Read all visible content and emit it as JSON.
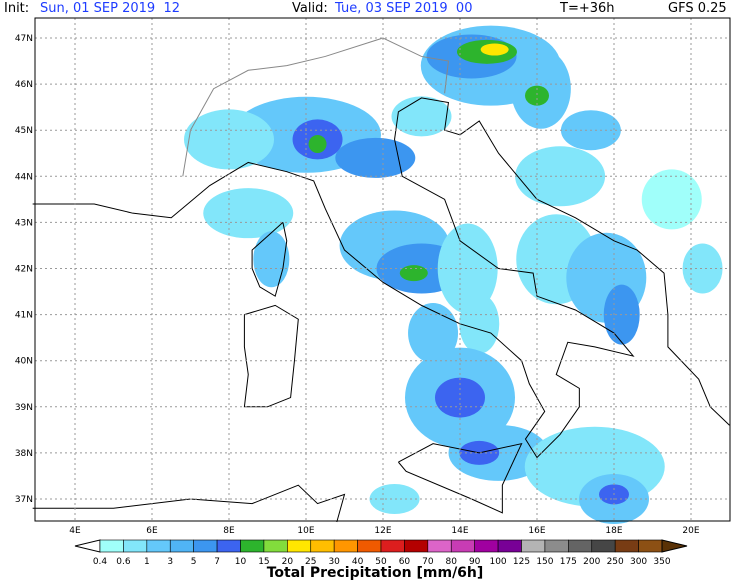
{
  "header": {
    "init_label": "Init:",
    "init": "Sun, 01 SEP 2019  12",
    "valid_label": "Valid:",
    "valid": "Tue, 03 SEP 2019  00",
    "lead": "T=+36h",
    "model": "GFS 0.25"
  },
  "map": {
    "lat_labels": [
      "47N",
      "46N",
      "45N",
      "44N",
      "43N",
      "42N",
      "41N",
      "40N",
      "39N",
      "38N",
      "37N"
    ],
    "lon_labels": [
      "4E",
      "6E",
      "8E",
      "10E",
      "12E",
      "14E",
      "16E",
      "18E",
      "20E"
    ]
  },
  "colorbar": {
    "labels": [
      "0.4",
      "0.6",
      "1",
      "3",
      "5",
      "7",
      "10",
      "15",
      "20",
      "25",
      "30",
      "40",
      "50",
      "60",
      "70",
      "80",
      "90",
      "100",
      "125",
      "150",
      "175",
      "200",
      "250",
      "300",
      "350"
    ],
    "colors": [
      "#ffffff",
      "#a0fffa",
      "#82e6fa",
      "#64c8fa",
      "#50b4f5",
      "#3c96f0",
      "#3c64f0",
      "#2db42d",
      "#82dc3c",
      "#ffe600",
      "#ffbe00",
      "#ff9600",
      "#f05a00",
      "#dc1e1e",
      "#b40000",
      "#dc64c8",
      "#c83cb4",
      "#a000a0",
      "#780096",
      "#b4b4b4",
      "#8c8c8c",
      "#646464",
      "#464646",
      "#783c14",
      "#8c5014",
      "#5a3206"
    ],
    "title": "Total Precipitation [mm/6h]"
  }
}
